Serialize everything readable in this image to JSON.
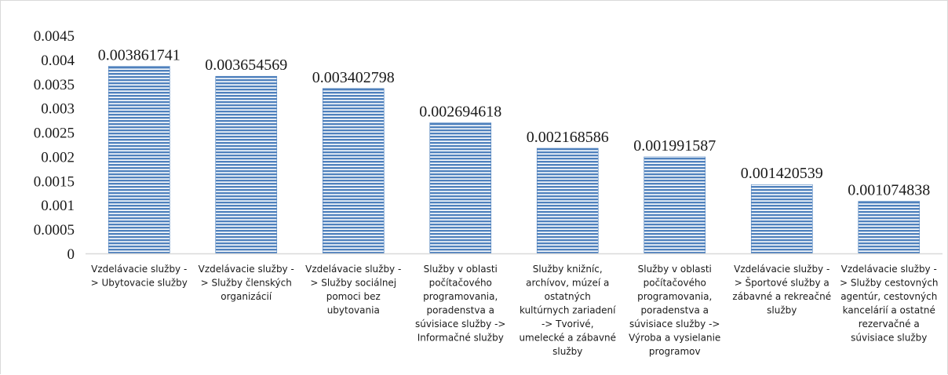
{
  "chart_data": {
    "type": "bar",
    "categories": [
      [
        "Vzdelávacie služby -",
        "> Ubytovacie služby"
      ],
      [
        "Vzdelávacie služby -",
        "> Služby členských",
        "organizácií"
      ],
      [
        "Vzdelávacie služby -",
        "> Služby sociálnej",
        "pomoci bez",
        "ubytovania"
      ],
      [
        "Služby v oblasti",
        "počítačového",
        "programovania,",
        "poradenstva a",
        "súvisiace služby ->",
        "Informačné služby"
      ],
      [
        "Služby knižníc,",
        "archívov, múzeí a",
        "ostatných",
        "kultúrnych zariadení",
        "-> Tvorivé,",
        "umelecké a zábavné",
        "služby"
      ],
      [
        "Služby v oblasti",
        "počítačového",
        "programovania,",
        "poradenstva a",
        "súvisiace služby ->",
        "Výroba a vysielanie",
        "programov"
      ],
      [
        "Vzdelávacie služby -",
        "> Športové služby a",
        "zábavné a rekreačné",
        "služby"
      ],
      [
        "Vzdelávacie služby -",
        "> Služby cestovných",
        "agentúr, cestovných",
        "kancelárií a ostatné",
        "rezervačné a",
        "súvisiace služby"
      ]
    ],
    "values": [
      0.003861741,
      0.003654569,
      0.003402798,
      0.002694618,
      0.002168586,
      0.001991587,
      0.001420539,
      0.001074838
    ],
    "data_labels": [
      "0.003861741",
      "0.003654569",
      "0.003402798",
      "0.002694618",
      "0.002168586",
      "0.001991587",
      "0.001420539",
      "0.001074838"
    ],
    "yticks": [
      "0",
      "0.0005",
      "0.001",
      "0.0015",
      "0.002",
      "0.0025",
      "0.003",
      "0.0035",
      "0.004",
      "0.0045"
    ],
    "ylim": [
      0,
      0.0045
    ],
    "grid": false,
    "bar_color": "#4f81bd"
  }
}
